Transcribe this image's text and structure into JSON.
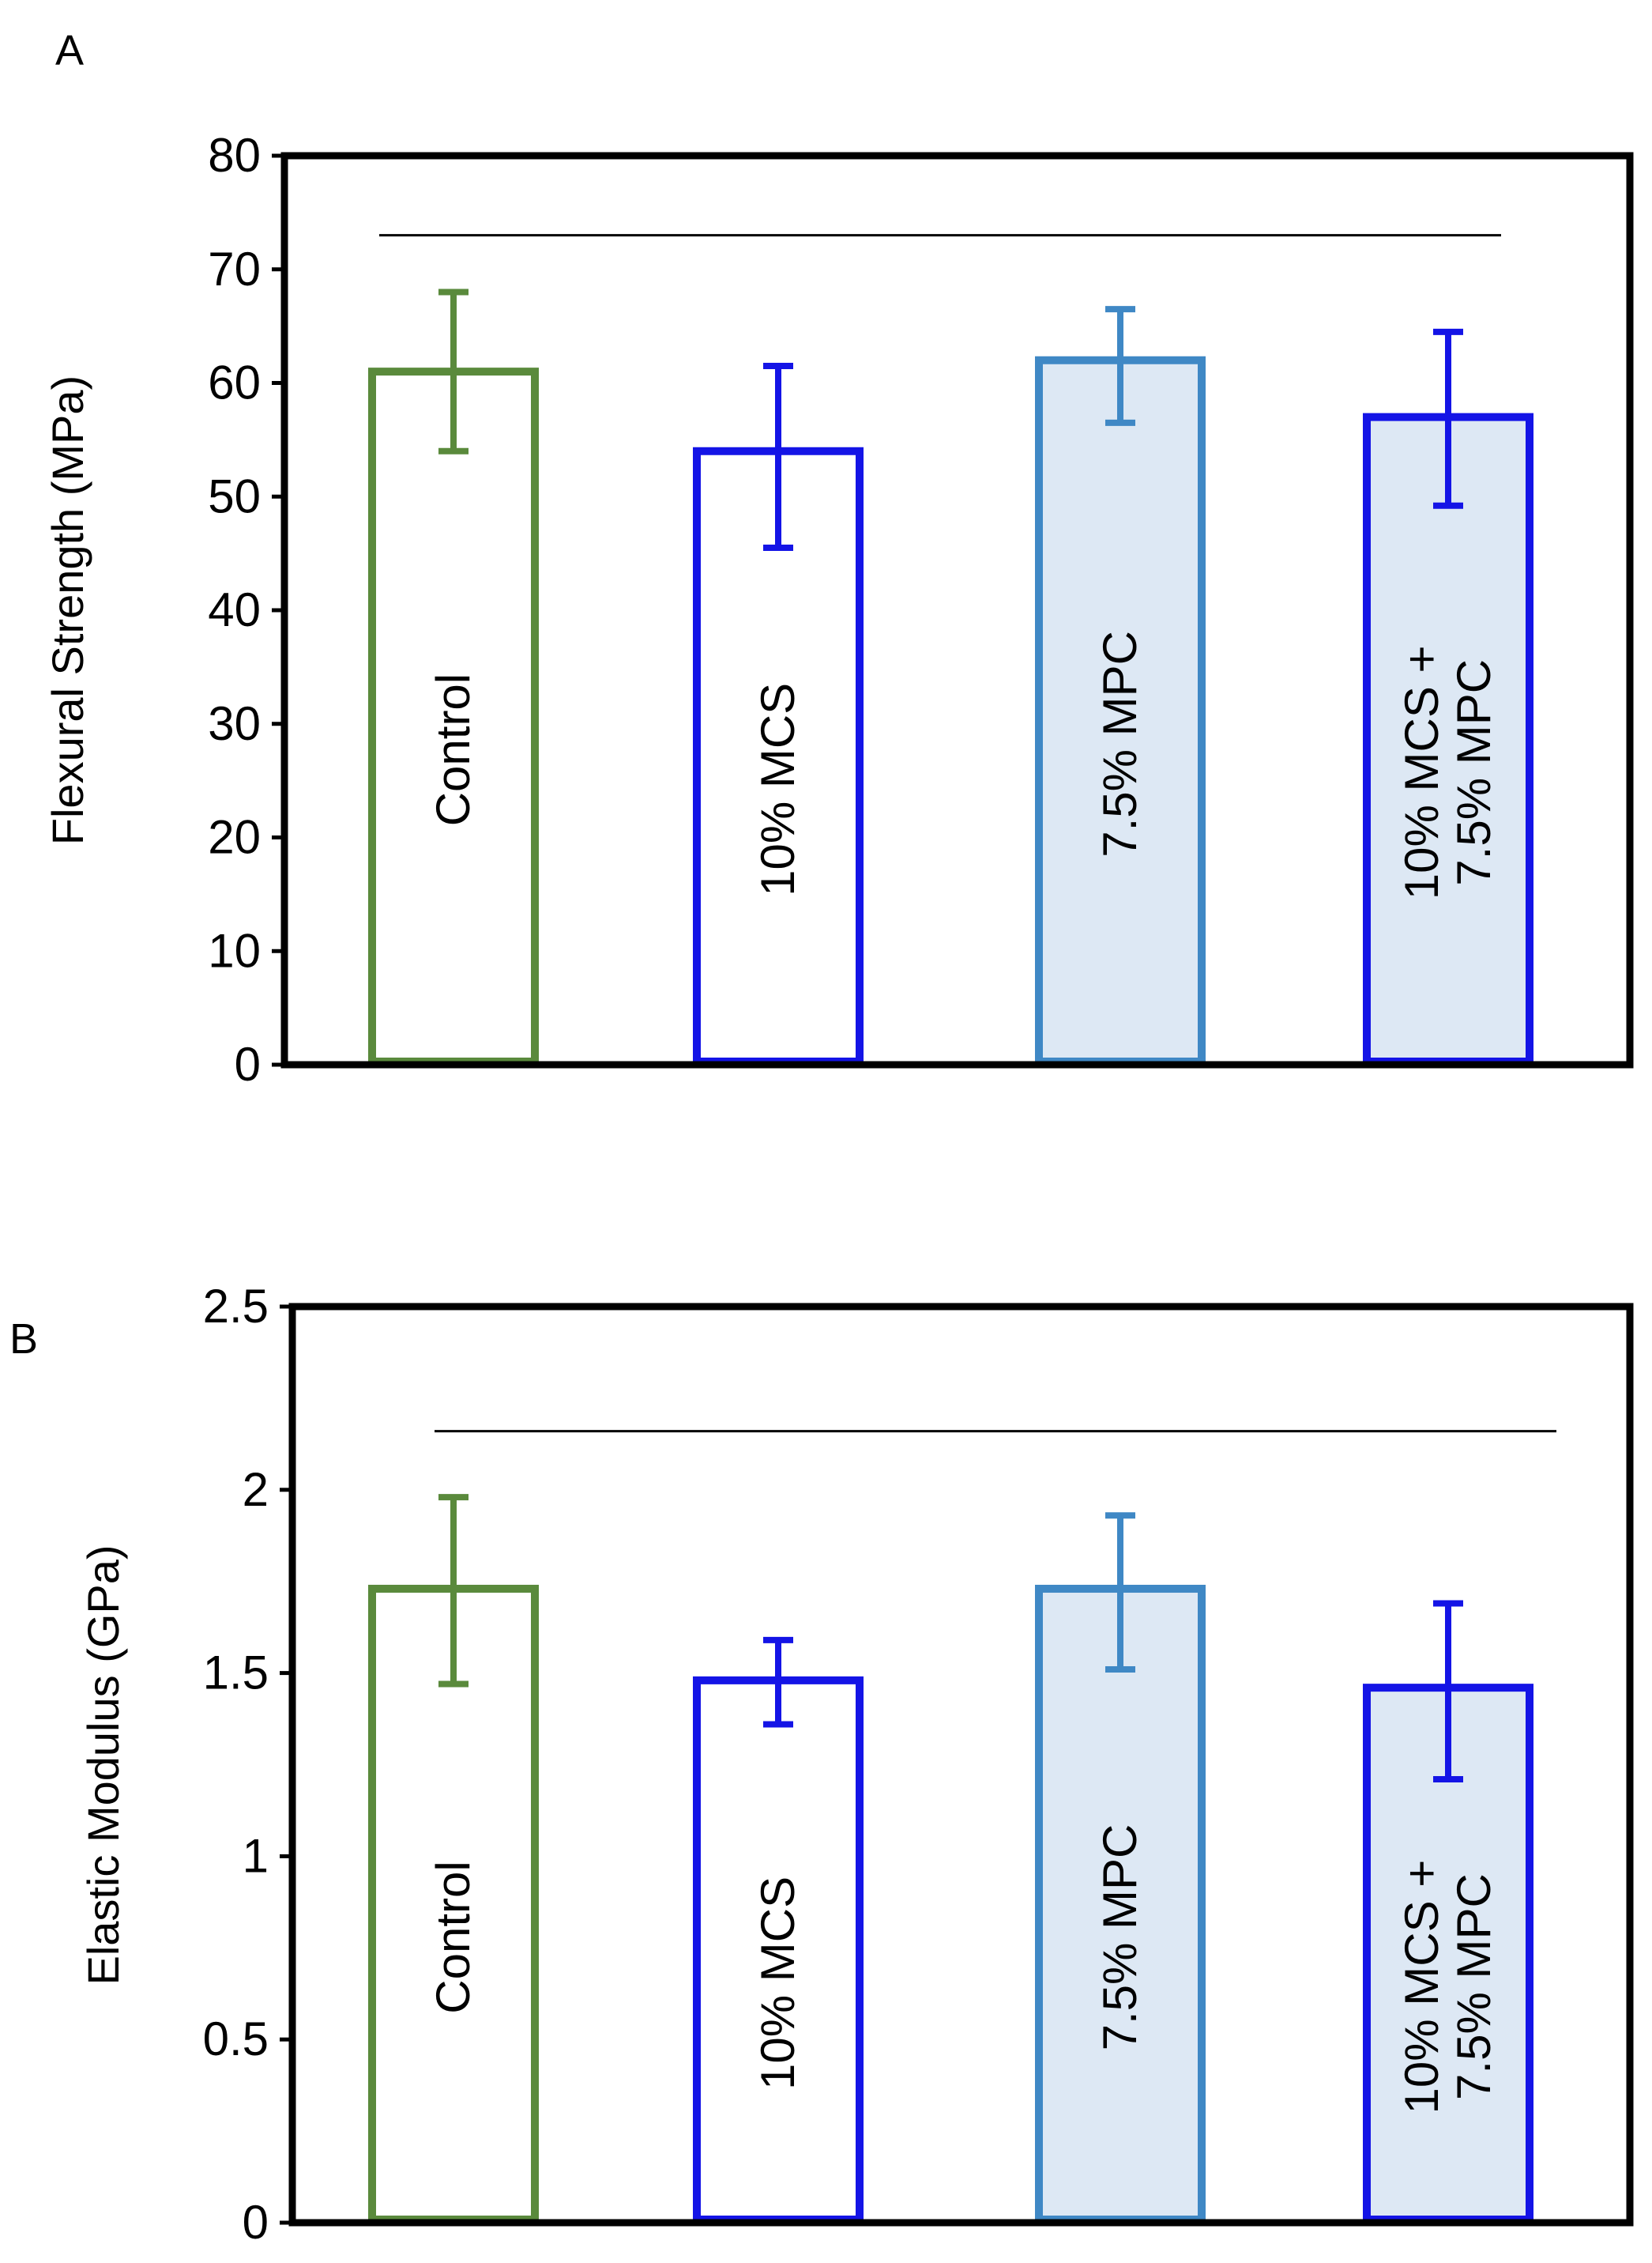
{
  "chart_data": [
    {
      "panel_label": "A",
      "type": "bar",
      "ylabel": "Flexural Strength (MPa)",
      "ylim": [
        0,
        80
      ],
      "yticks": [
        0,
        10,
        20,
        30,
        40,
        50,
        60,
        70,
        80
      ],
      "categories": [
        "Control",
        "10% MCS",
        "7.5% MPC",
        "10% MCS +\n7.5% MPC"
      ],
      "values": [
        61,
        54,
        62,
        57
      ],
      "error_low": [
        54,
        45.5,
        56.5,
        49.2
      ],
      "error_high": [
        68,
        61.5,
        66.5,
        64.5
      ],
      "significance_bar_value": 73,
      "bar_styles": [
        {
          "edge": "#5a8a3c",
          "fill": "#ffffff"
        },
        {
          "edge": "#1414e6",
          "fill": "#ffffff"
        },
        {
          "edge": "#3f88c5",
          "fill": "#dde8f4"
        },
        {
          "edge": "#1414e6",
          "fill": "#dde8f4"
        }
      ]
    },
    {
      "panel_label": "B",
      "type": "bar",
      "ylabel": "Elastic Modulus (GPa)",
      "ylim": [
        0,
        2.5
      ],
      "yticks": [
        0,
        0.5,
        1,
        1.5,
        2,
        2.5
      ],
      "categories": [
        "Control",
        "10% MCS",
        "7.5% MPC",
        "10% MCS +\n7.5% MPC"
      ],
      "values": [
        1.73,
        1.48,
        1.73,
        1.46
      ],
      "error_low": [
        1.47,
        1.36,
        1.51,
        1.21
      ],
      "error_high": [
        1.98,
        1.59,
        1.93,
        1.69
      ],
      "significance_bar_value": 2.16,
      "bar_styles": [
        {
          "edge": "#5a8a3c",
          "fill": "#ffffff"
        },
        {
          "edge": "#1414e6",
          "fill": "#ffffff"
        },
        {
          "edge": "#3f88c5",
          "fill": "#dde8f4"
        },
        {
          "edge": "#1414e6",
          "fill": "#dde8f4"
        }
      ]
    }
  ]
}
